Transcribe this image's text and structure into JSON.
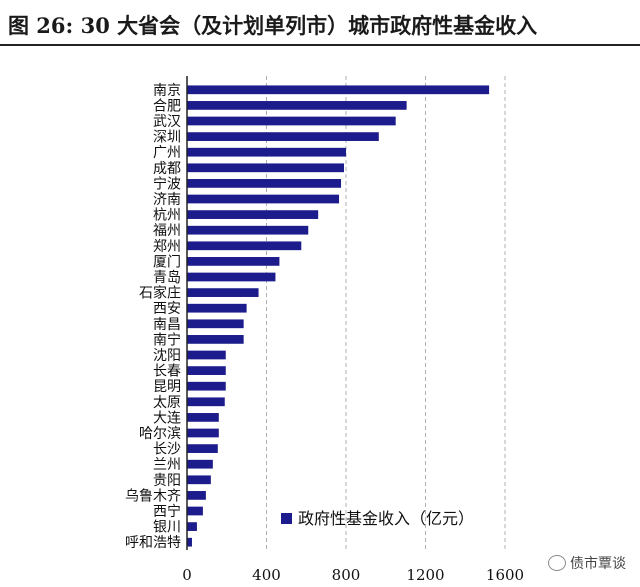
{
  "title": "图 26:  30 大省会（及计划单列市）城市政府性基金收入",
  "watermark": "债市覃谈",
  "chart_data": {
    "type": "bar",
    "orientation": "horizontal",
    "title": "图 26:  30 大省会（及计划单列市）城市政府性基金收入",
    "categories": [
      "南京",
      "合肥",
      "武汉",
      "深圳",
      "广州",
      "成都",
      "宁波",
      "济南",
      "杭州",
      "福州",
      "郑州",
      "厦门",
      "青岛",
      "石家庄",
      "西安",
      "南昌",
      "南宁",
      "沈阳",
      "长春",
      "昆明",
      "太原",
      "大连",
      "哈尔滨",
      "长沙",
      "兰州",
      "贵阳",
      "乌鲁木齐",
      "西宁",
      "银川",
      "呼和浩特"
    ],
    "series": [
      {
        "name": "政府性基金收入（亿元）",
        "values": [
          1520,
          1105,
          1050,
          965,
          800,
          790,
          775,
          765,
          660,
          610,
          575,
          465,
          445,
          360,
          300,
          285,
          285,
          195,
          195,
          195,
          190,
          160,
          160,
          155,
          130,
          120,
          95,
          80,
          50,
          25
        ]
      }
    ],
    "xlim": [
      0,
      1600
    ],
    "xticks": [
      0,
      400,
      800,
      1200,
      1600
    ],
    "grid": "vertical",
    "legend": "bottom-right",
    "color": "#1c1c8c"
  }
}
